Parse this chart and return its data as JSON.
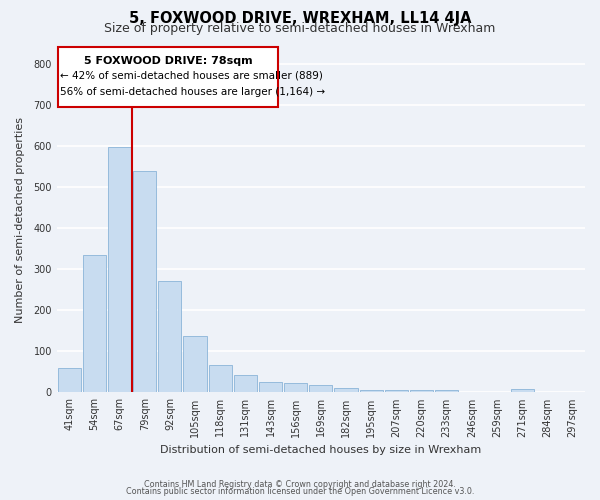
{
  "title": "5, FOXWOOD DRIVE, WREXHAM, LL14 4JA",
  "subtitle": "Size of property relative to semi-detached houses in Wrexham",
  "xlabel": "Distribution of semi-detached houses by size in Wrexham",
  "ylabel": "Number of semi-detached properties",
  "bar_labels": [
    "41sqm",
    "54sqm",
    "67sqm",
    "79sqm",
    "92sqm",
    "105sqm",
    "118sqm",
    "131sqm",
    "143sqm",
    "156sqm",
    "169sqm",
    "182sqm",
    "195sqm",
    "207sqm",
    "220sqm",
    "233sqm",
    "246sqm",
    "259sqm",
    "271sqm",
    "284sqm",
    "297sqm"
  ],
  "bar_values": [
    60,
    335,
    597,
    540,
    272,
    137,
    67,
    42,
    25,
    22,
    17,
    10,
    5,
    5,
    5,
    7,
    2,
    0,
    8,
    0,
    0
  ],
  "bar_color": "#c8dcf0",
  "bar_edge_color": "#8ab4d8",
  "annotation_box_title": "5 FOXWOOD DRIVE: 78sqm",
  "annotation_line1": "← 42% of semi-detached houses are smaller (889)",
  "annotation_line2": "56% of semi-detached houses are larger (1,164) →",
  "vline_color": "#cc0000",
  "ylim": [
    0,
    840
  ],
  "yticks": [
    0,
    100,
    200,
    300,
    400,
    500,
    600,
    700,
    800
  ],
  "footer1": "Contains HM Land Registry data © Crown copyright and database right 2024.",
  "footer2": "Contains public sector information licensed under the Open Government Licence v3.0.",
  "bg_color": "#eef2f8",
  "plot_bg_color": "#eef2f8",
  "grid_color": "#ffffff",
  "title_fontsize": 10.5,
  "subtitle_fontsize": 9,
  "axis_label_fontsize": 8,
  "tick_fontsize": 7
}
